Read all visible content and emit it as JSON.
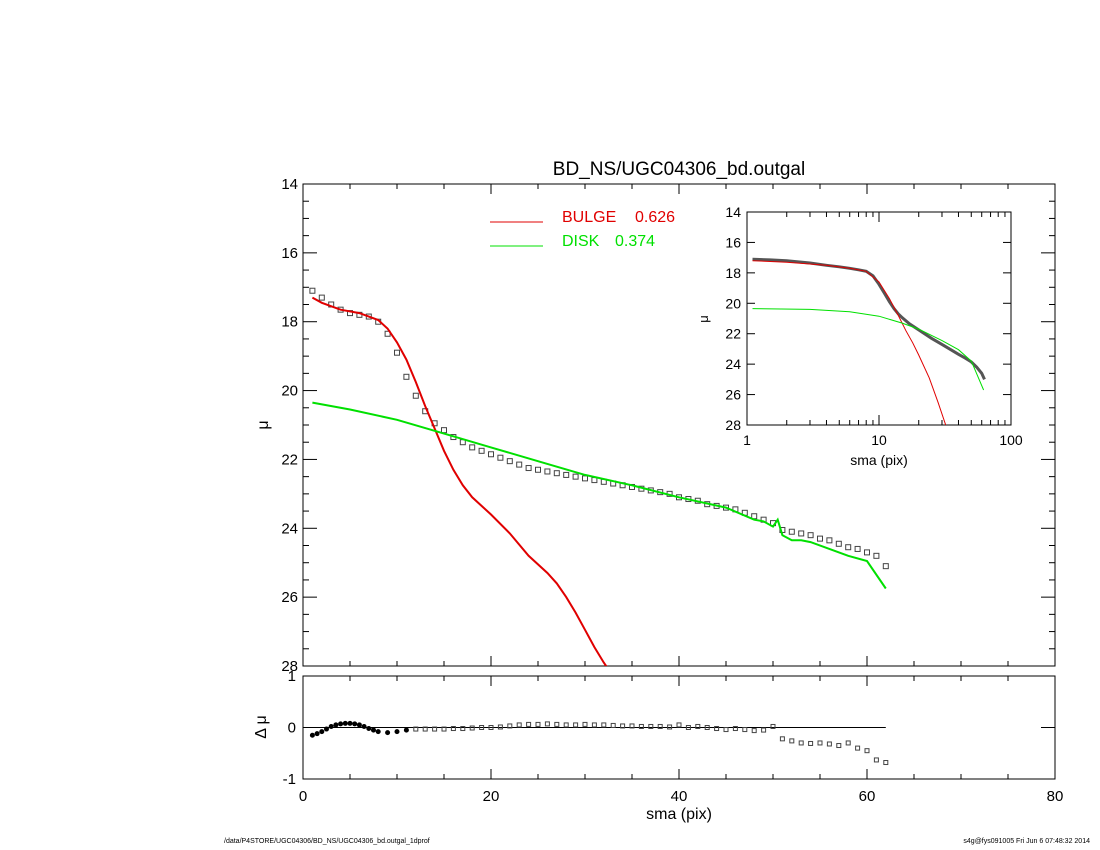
{
  "chart_data": [
    {
      "id": "main",
      "type": "scatter",
      "title": "BD_NS/UGC04306_bd.outgal",
      "xlabel": "",
      "ylabel": "μ",
      "xlim": [
        0,
        80
      ],
      "ylim": [
        28,
        14
      ],
      "y_inverted": true,
      "x_ticks": [
        0,
        20,
        40,
        60,
        80
      ],
      "y_ticks": [
        14,
        16,
        18,
        20,
        22,
        24,
        26,
        28
      ],
      "legend": {
        "placement": "top-center",
        "entries": [
          {
            "label": "BULGE",
            "value": "0.626",
            "color": "#e00000"
          },
          {
            "label": "DISK",
            "value": "0.374",
            "color": "#00e000"
          }
        ]
      },
      "series": [
        {
          "name": "BULGE",
          "kind": "line",
          "color": "#e00000",
          "x": [
            1,
            2,
            4,
            6,
            8,
            9,
            10,
            11,
            12,
            13,
            14,
            15,
            16,
            17,
            18,
            20,
            22,
            24,
            26,
            27,
            28,
            29,
            30,
            31,
            32,
            32.5
          ],
          "y": [
            17.3,
            17.45,
            17.65,
            17.75,
            17.95,
            18.2,
            18.6,
            19.1,
            19.75,
            20.45,
            21.1,
            21.75,
            22.3,
            22.75,
            23.1,
            23.6,
            24.15,
            24.8,
            25.3,
            25.6,
            26.0,
            26.45,
            26.95,
            27.45,
            27.9,
            28.1
          ]
        },
        {
          "name": "DISK",
          "kind": "line",
          "color": "#00e000",
          "x": [
            1,
            5,
            10,
            15,
            20,
            25,
            30,
            35,
            40,
            45,
            48,
            49,
            50,
            50.5,
            51,
            52,
            53,
            54,
            56,
            58,
            60,
            62
          ],
          "y": [
            20.35,
            20.55,
            20.85,
            21.25,
            21.65,
            22.05,
            22.45,
            22.75,
            23.1,
            23.4,
            23.75,
            23.8,
            23.95,
            23.75,
            24.2,
            24.35,
            24.35,
            24.4,
            24.6,
            24.8,
            24.95,
            25.75
          ]
        },
        {
          "name": "",
          "kind": "points",
          "color": "#444444",
          "x": [
            1,
            2,
            3,
            4,
            5,
            6,
            7,
            8,
            9,
            10,
            11,
            12,
            13,
            14,
            15,
            16,
            17,
            18,
            19,
            20,
            21,
            22,
            23,
            24,
            25,
            26,
            27,
            28,
            29,
            30,
            31,
            32,
            33,
            34,
            35,
            36,
            37,
            38,
            39,
            40,
            41,
            42,
            43,
            44,
            45,
            46,
            47,
            48,
            49,
            50,
            51,
            52,
            53,
            54,
            55,
            56,
            57,
            58,
            59,
            60,
            61,
            62
          ],
          "y": [
            17.1,
            17.3,
            17.5,
            17.65,
            17.75,
            17.8,
            17.85,
            18.0,
            18.35,
            18.9,
            19.6,
            20.15,
            20.6,
            20.95,
            21.15,
            21.35,
            21.5,
            21.65,
            21.75,
            21.85,
            21.95,
            22.05,
            22.15,
            22.25,
            22.3,
            22.35,
            22.4,
            22.45,
            22.5,
            22.55,
            22.6,
            22.65,
            22.7,
            22.75,
            22.8,
            22.85,
            22.9,
            22.95,
            23.0,
            23.1,
            23.15,
            23.2,
            23.3,
            23.35,
            23.4,
            23.45,
            23.55,
            23.65,
            23.75,
            23.85,
            24.05,
            24.1,
            24.15,
            24.2,
            24.3,
            24.35,
            24.45,
            24.55,
            24.6,
            24.7,
            24.8,
            25.1
          ]
        }
      ]
    },
    {
      "id": "residual",
      "type": "scatter",
      "xlabel": "sma (pix)",
      "ylabel": "Δ μ",
      "xlim": [
        0,
        80
      ],
      "ylim": [
        -1,
        1
      ],
      "x_ticks": [
        0,
        20,
        40,
        60,
        80
      ],
      "y_ticks": [
        -1,
        0,
        1
      ],
      "zero_line": {
        "x_range": [
          1,
          62
        ],
        "y": 0
      },
      "series": [
        {
          "name": "",
          "kind": "points",
          "color": "#444444",
          "x": [
            1,
            1.5,
            2,
            2.5,
            3,
            3.5,
            4,
            4.5,
            5,
            5.5,
            6,
            6.5,
            7,
            7.5,
            8,
            9,
            10,
            11,
            12,
            13,
            14,
            15,
            16,
            17,
            18,
            19,
            20,
            21,
            22,
            23,
            24,
            25,
            26,
            27,
            28,
            29,
            30,
            31,
            32,
            33,
            34,
            35,
            36,
            37,
            38,
            39,
            40,
            41,
            42,
            43,
            44,
            45,
            46,
            47,
            48,
            49,
            50,
            51,
            52,
            53,
            54,
            55,
            56,
            57,
            58,
            59,
            60,
            61,
            62
          ],
          "y": [
            -0.15,
            -0.12,
            -0.08,
            -0.03,
            0.02,
            0.05,
            0.07,
            0.08,
            0.08,
            0.07,
            0.05,
            0.02,
            -0.02,
            -0.05,
            -0.08,
            -0.1,
            -0.08,
            -0.05,
            -0.03,
            -0.03,
            -0.03,
            -0.03,
            -0.02,
            -0.02,
            -0.01,
            0.0,
            0.0,
            0.01,
            0.03,
            0.05,
            0.06,
            0.06,
            0.07,
            0.06,
            0.05,
            0.05,
            0.06,
            0.05,
            0.05,
            0.04,
            0.03,
            0.03,
            0.02,
            0.02,
            0.02,
            0.01,
            0.05,
            0.0,
            0.02,
            0.0,
            -0.02,
            -0.04,
            -0.02,
            -0.04,
            -0.06,
            -0.05,
            0.02,
            -0.22,
            -0.26,
            -0.3,
            -0.31,
            -0.3,
            -0.32,
            -0.35,
            -0.3,
            -0.4,
            -0.45,
            -0.63,
            -0.68
          ]
        }
      ]
    },
    {
      "id": "inset",
      "type": "line",
      "xlabel": "sma (pix)",
      "ylabel": "μ",
      "x_scale": "log",
      "xlim": [
        1,
        100
      ],
      "ylim": [
        28,
        14
      ],
      "y_inverted": true,
      "x_ticks": [
        1,
        10,
        100
      ],
      "y_ticks": [
        14,
        16,
        18,
        20,
        22,
        24,
        26,
        28
      ],
      "series": [
        {
          "name": "",
          "kind": "data",
          "color": "#555555",
          "x": [
            1.1,
            1.5,
            2,
            3,
            4,
            5,
            6,
            7,
            8,
            9,
            10,
            11,
            12,
            13,
            14,
            15,
            17,
            20,
            25,
            30,
            35,
            40,
            45,
            50,
            55,
            60,
            63
          ],
          "y": [
            17.1,
            17.15,
            17.2,
            17.35,
            17.5,
            17.6,
            17.7,
            17.8,
            17.9,
            18.2,
            18.75,
            19.35,
            19.9,
            20.35,
            20.7,
            20.95,
            21.35,
            21.75,
            22.3,
            22.7,
            23.05,
            23.35,
            23.6,
            23.85,
            24.2,
            24.6,
            25.0
          ]
        },
        {
          "name": "BULGE",
          "kind": "model",
          "color": "#e00000",
          "x": [
            1.1,
            2,
            4,
            6,
            8,
            10,
            12,
            14,
            16,
            18,
            20,
            24,
            28,
            32
          ],
          "y": [
            17.2,
            17.3,
            17.5,
            17.7,
            17.9,
            18.6,
            19.7,
            20.8,
            21.8,
            22.6,
            23.4,
            24.9,
            26.5,
            28.0
          ]
        },
        {
          "name": "DISK",
          "kind": "model",
          "color": "#00e000",
          "x": [
            1.1,
            3,
            6,
            10,
            15,
            20,
            30,
            40,
            50,
            62
          ],
          "y": [
            20.35,
            20.4,
            20.55,
            20.85,
            21.3,
            21.7,
            22.45,
            23.05,
            23.8,
            25.7
          ]
        }
      ]
    }
  ],
  "footer": {
    "left": "/data/P4STORE/UGC04306/BD_NS/UGC04306_bd.outgal_1dprof",
    "right": "s4g@fys091005  Fri Jun  6 07:48:32 2014"
  }
}
